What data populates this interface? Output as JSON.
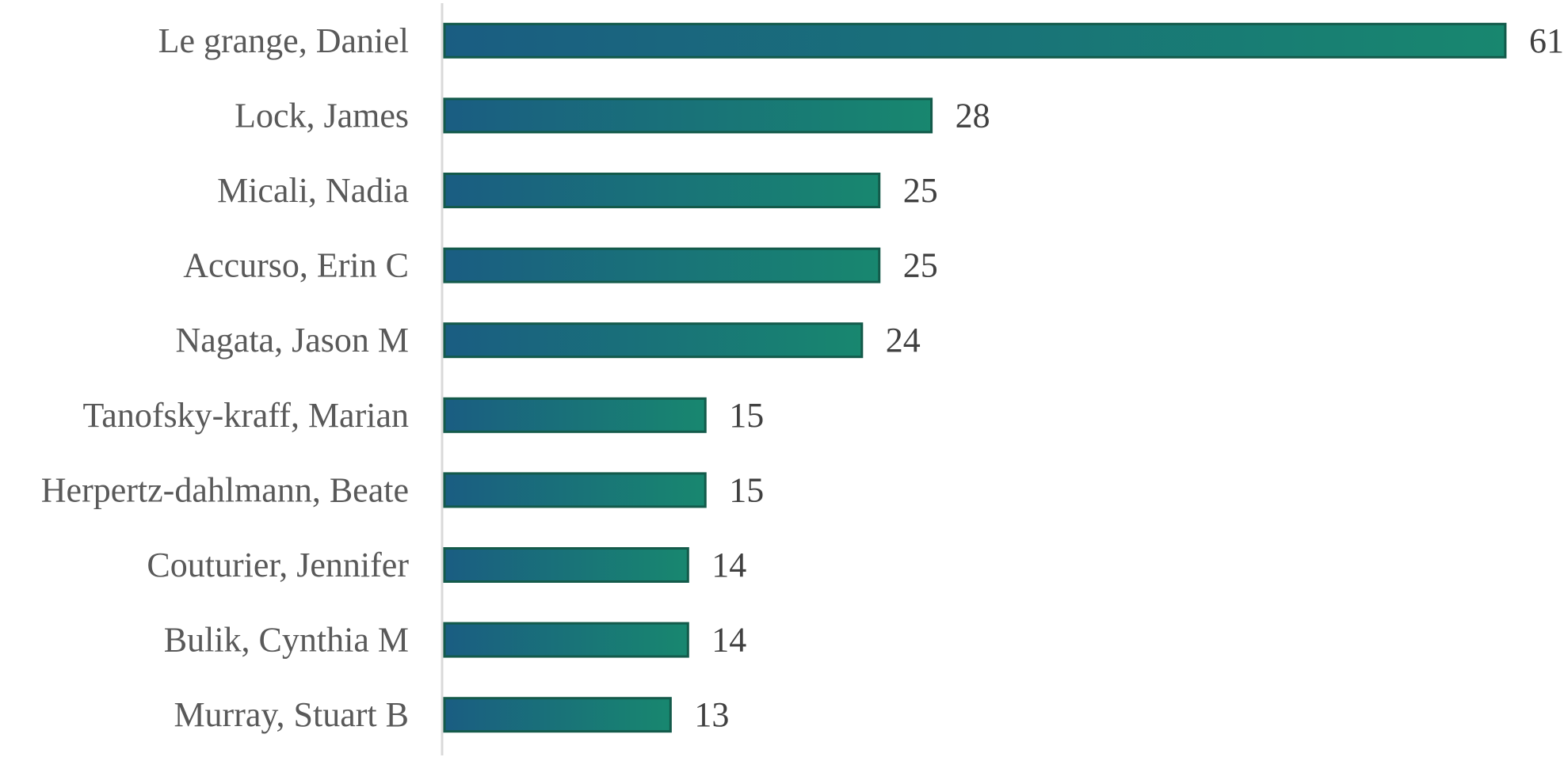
{
  "chart_data": {
    "type": "bar",
    "orientation": "horizontal",
    "categories": [
      "Le grange, Daniel",
      "Lock, James",
      "Micali, Nadia",
      "Accurso, Erin C",
      "Nagata, Jason M",
      "Tanofsky-kraff, Marian",
      "Herpertz-dahlmann, Beate",
      "Couturier, Jennifer",
      "Bulik, Cynthia M",
      "Murray, Stuart B"
    ],
    "values": [
      61,
      28,
      25,
      25,
      24,
      15,
      15,
      14,
      14,
      13
    ],
    "value_labels": [
      "61",
      "28",
      "25",
      "25",
      "24",
      "15",
      "15",
      "14",
      "14",
      "13"
    ],
    "title": "",
    "xlabel": "",
    "ylabel": "",
    "xlim": [
      0,
      61
    ],
    "grid": false,
    "legend": "none",
    "data_labels": "outside-end"
  },
  "colors": {
    "bar_start": "#1a5d82",
    "bar_end": "#18876f",
    "bar_border": "#135a4a",
    "axis_line": "#d9d9d9",
    "category_text": "#595959",
    "value_text": "#404040"
  }
}
